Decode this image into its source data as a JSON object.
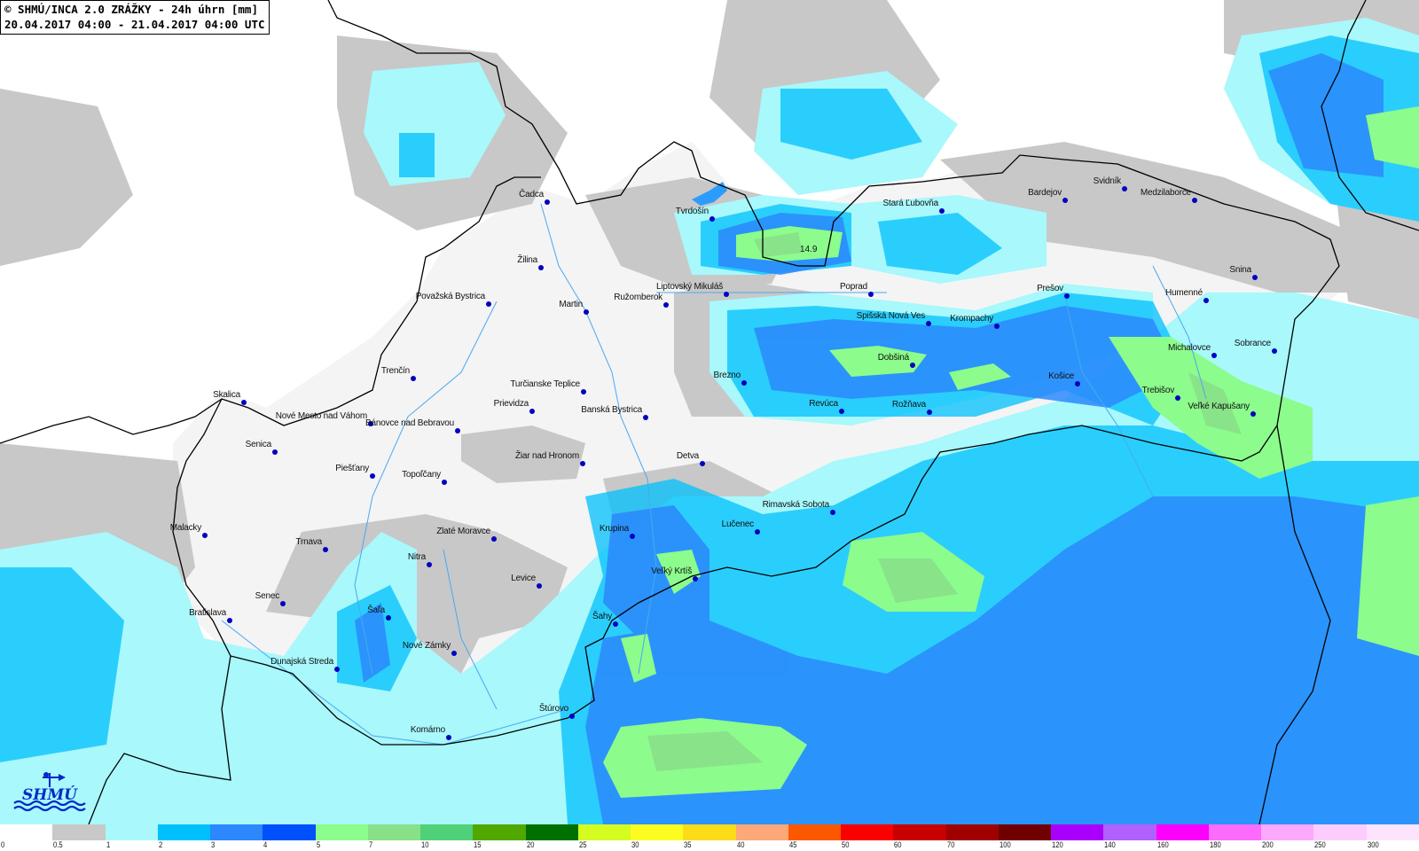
{
  "header": {
    "title_line1": "© SHMÚ/INCA 2.0 ZRÁŽKY - 24h úhrn [mm]",
    "title_line2": "20.04.2017 04:00 - 21.04.2017 04:00 UTC"
  },
  "logo": {
    "text": "SHMÚ",
    "icon": "shmu-logo-weathervane-waves"
  },
  "max_value_label": "14.9",
  "cities": [
    "Čadca",
    "Tvrdošín",
    "Žilina",
    "Považská Bystrica",
    "Martin",
    "Ružomberok",
    "Liptovský Mikuláš",
    "Stará Ľubovňa",
    "Bardejov",
    "Svidník",
    "Medzilaborce",
    "Snina",
    "Poprad",
    "Spišská Nová Ves",
    "Krompachy",
    "Prešov",
    "Humenné",
    "Michalovce",
    "Sobrance",
    "Dobšiná",
    "Košice",
    "Trebišov",
    "Veľké Kapušany",
    "Brezno",
    "Revúca",
    "Rožňava",
    "Trenčín",
    "Skalica",
    "Nové Mesto nad Váhom",
    "Bánovce nad Bebravou",
    "Turčianske Teplice",
    "Prievidza",
    "Banská Bystrica",
    "Senica",
    "Piešťany",
    "Topoľčany",
    "Žiar nad Hronom",
    "Detva",
    "Rimavská Sobota",
    "Lučenec",
    "Krupina",
    "Malacky",
    "Zlaté Moravce",
    "Trnava",
    "Nitra",
    "Levice",
    "Veľký Krtíš",
    "Senec",
    "Bratislava",
    "Šaľa",
    "Šahy",
    "Nové Zámky",
    "Dunajská Streda",
    "Štúrovo",
    "Komárno"
  ],
  "legend": {
    "unit": "mm",
    "labels": [
      "0",
      "0.5",
      "1",
      "2",
      "3",
      "4",
      "5",
      "7",
      "10",
      "15",
      "20",
      "25",
      "30",
      "35",
      "40",
      "45",
      "50",
      "60",
      "70",
      "100",
      "120",
      "140",
      "160",
      "180",
      "200",
      "250",
      "300"
    ],
    "colors": [
      "#ffffff",
      "#c8c8c8",
      "#a8f8fc",
      "#00c0fc",
      "#2c88fc",
      "#0050fc",
      "#8cfc8c",
      "#88e088",
      "#50d078",
      "#50a800",
      "#007000",
      "#d4fc20",
      "#fcfc20",
      "#fcdc18",
      "#fca878",
      "#fc5800",
      "#fc0000",
      "#c80000",
      "#a00000",
      "#700000",
      "#a800fc",
      "#b060fc",
      "#fc00fc",
      "#fc6cfc",
      "#fca8fc",
      "#fccdfc",
      "#fce4fc"
    ]
  },
  "colors": {
    "city_dot": "#0000c0",
    "border": "#000000",
    "rivers": "#4aa8f0",
    "country_fill": "#f4f4f4"
  }
}
